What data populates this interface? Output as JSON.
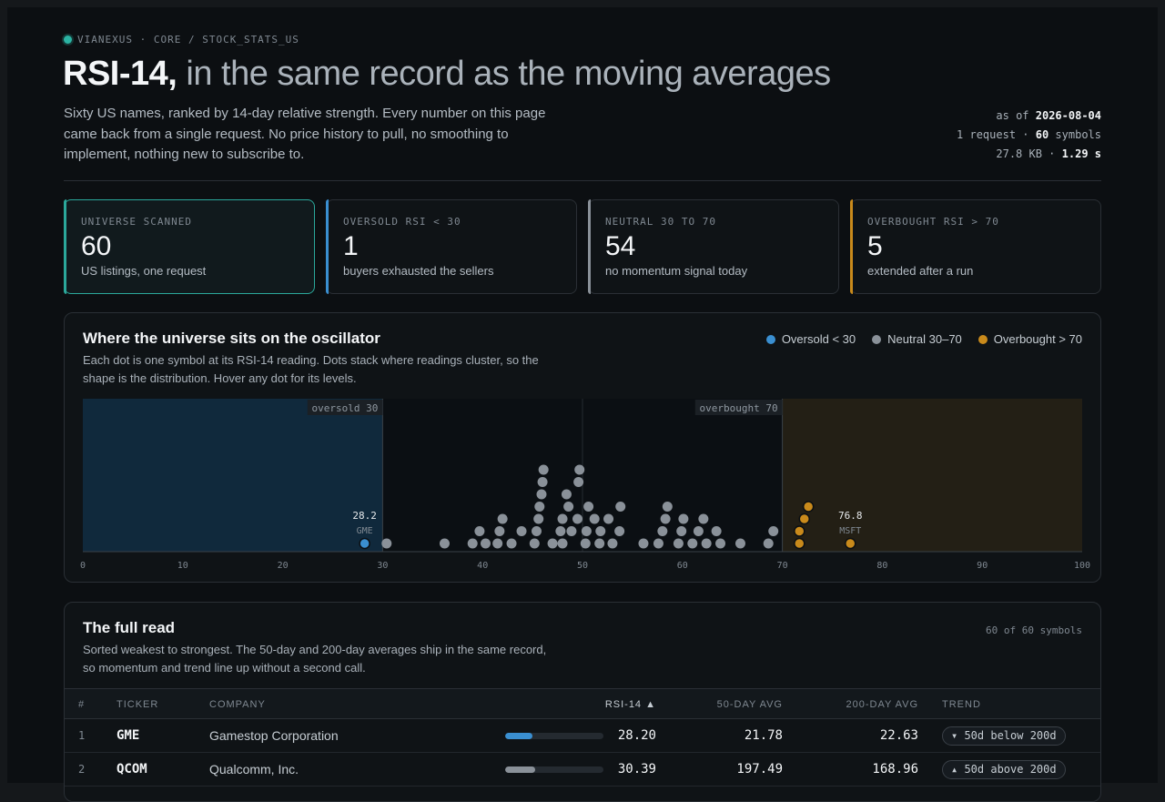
{
  "brand": "VIANEXUS · CORE / STOCK_STATS_US",
  "title": {
    "strong": "RSI-14,",
    "light": "in the same record as the moving averages"
  },
  "lede": "Sixty US names, ranked by 14-day relative strength. Every number on this page came back from a single request. No price history to pull, no smoothing to implement, nothing new to subscribe to.",
  "meta": {
    "as_of_label": "as of",
    "as_of_value": "2026-08-04",
    "requests_label": "1 request ·",
    "symbols_value": "60",
    "symbols_label": "symbols",
    "size_label": "27.8 KB ·",
    "time_value": "1.29 s"
  },
  "stats": [
    {
      "label": "UNIVERSE SCANNED",
      "value": "60",
      "sub": "US listings, one request"
    },
    {
      "label": "OVERSOLD RSI < 30",
      "value": "1",
      "sub": "buyers exhausted the sellers"
    },
    {
      "label": "NEUTRAL 30 TO 70",
      "value": "54",
      "sub": "no momentum signal today"
    },
    {
      "label": "OVERBOUGHT RSI > 70",
      "value": "5",
      "sub": "extended after a run"
    }
  ],
  "colors": {
    "oversold": "#3a8fd1",
    "neutral": "#8a9199",
    "overbought": "#c98a1b",
    "accent": "#2ba89b"
  },
  "oscillator": {
    "title": "Where the universe sits on the oscillator",
    "desc": "Each dot is one symbol at its RSI-14 reading. Dots stack where readings cluster, so the shape is the distribution. Hover any dot for its levels.",
    "legend": [
      "Oversold < 30",
      "Neutral 30–70",
      "Overbought > 70"
    ]
  },
  "chart_data": {
    "type": "scatter",
    "xlim": [
      0,
      100
    ],
    "xticks": [
      "0",
      "10",
      "20",
      "30",
      "40",
      "50",
      "60",
      "70",
      "80",
      "90",
      "100"
    ],
    "bands": [
      {
        "label": "oversold 30",
        "value": 30
      },
      {
        "label": "overbought 70",
        "value": 70
      }
    ],
    "annotations": [
      {
        "ticker": "GME",
        "value": "28.2",
        "x": 28.2
      },
      {
        "ticker": "MSFT",
        "value": "76.8",
        "x": 76.8
      }
    ],
    "points": [
      [
        28.2,
        0,
        "o"
      ],
      [
        30.4,
        0,
        "n"
      ],
      [
        36.2,
        0,
        "n"
      ],
      [
        39.0,
        0,
        "n"
      ],
      [
        39.7,
        1,
        "n"
      ],
      [
        40.3,
        0,
        "n"
      ],
      [
        41.5,
        0,
        "n"
      ],
      [
        41.7,
        1,
        "n"
      ],
      [
        42.0,
        2,
        "n"
      ],
      [
        42.9,
        0,
        "n"
      ],
      [
        43.9,
        1,
        "n"
      ],
      [
        45.2,
        0,
        "n"
      ],
      [
        45.4,
        1,
        "n"
      ],
      [
        45.6,
        2,
        "n"
      ],
      [
        45.7,
        3,
        "n"
      ],
      [
        45.9,
        4,
        "n"
      ],
      [
        46.0,
        5,
        "n"
      ],
      [
        46.1,
        6,
        "n"
      ],
      [
        47.0,
        0,
        "n"
      ],
      [
        47.8,
        1,
        "n"
      ],
      [
        48.0,
        2,
        "n"
      ],
      [
        48.0,
        0,
        "n"
      ],
      [
        48.4,
        4,
        "n"
      ],
      [
        48.6,
        3,
        "n"
      ],
      [
        48.9,
        1,
        "n"
      ],
      [
        49.5,
        2,
        "n"
      ],
      [
        49.6,
        5,
        "n"
      ],
      [
        49.7,
        6,
        "n"
      ],
      [
        50.3,
        0,
        "n"
      ],
      [
        50.4,
        1,
        "n"
      ],
      [
        50.6,
        3,
        "n"
      ],
      [
        51.2,
        2,
        "n"
      ],
      [
        51.7,
        0,
        "n"
      ],
      [
        51.8,
        1,
        "n"
      ],
      [
        52.6,
        2,
        "n"
      ],
      [
        53.0,
        0,
        "n"
      ],
      [
        53.7,
        1,
        "n"
      ],
      [
        53.8,
        3,
        "n"
      ],
      [
        56.1,
        0,
        "n"
      ],
      [
        57.6,
        0,
        "n"
      ],
      [
        58.0,
        1,
        "n"
      ],
      [
        58.3,
        2,
        "n"
      ],
      [
        58.5,
        3,
        "n"
      ],
      [
        59.6,
        0,
        "n"
      ],
      [
        59.9,
        1,
        "n"
      ],
      [
        60.1,
        2,
        "n"
      ],
      [
        61.0,
        0,
        "n"
      ],
      [
        61.6,
        1,
        "n"
      ],
      [
        62.1,
        2,
        "n"
      ],
      [
        62.4,
        0,
        "n"
      ],
      [
        63.4,
        1,
        "n"
      ],
      [
        63.8,
        0,
        "n"
      ],
      [
        65.8,
        0,
        "n"
      ],
      [
        68.6,
        0,
        "n"
      ],
      [
        69.1,
        1,
        "n"
      ],
      [
        71.7,
        0,
        "b"
      ],
      [
        71.7,
        1,
        "b"
      ],
      [
        72.2,
        2,
        "b"
      ],
      [
        72.6,
        3,
        "b"
      ],
      [
        76.8,
        0,
        "b"
      ]
    ]
  },
  "table": {
    "title": "The full read",
    "desc": "Sorted weakest to strongest. The 50-day and 200-day averages ship in the same record, so momentum and trend line up without a second call.",
    "count": "60 of 60 symbols",
    "headers": {
      "num": "#",
      "ticker": "TICKER",
      "company": "COMPANY",
      "rsi": "RSI-14 ▲",
      "ma50": "50-DAY AVG",
      "ma200": "200-DAY AVG",
      "trend": "TREND"
    },
    "rows": [
      {
        "num": "1",
        "ticker": "GME",
        "company": "Gamestop Corporation",
        "rsi": "28.20",
        "rsi_value": 28.2,
        "ma50": "21.78",
        "ma200": "22.63",
        "trend": "▾ 50d below 200d",
        "zone": "o"
      },
      {
        "num": "2",
        "ticker": "QCOM",
        "company": "Qualcomm, Inc.",
        "rsi": "30.39",
        "rsi_value": 30.39,
        "ma50": "197.49",
        "ma200": "168.96",
        "trend": "▴ 50d above 200d",
        "zone": "n"
      }
    ]
  }
}
